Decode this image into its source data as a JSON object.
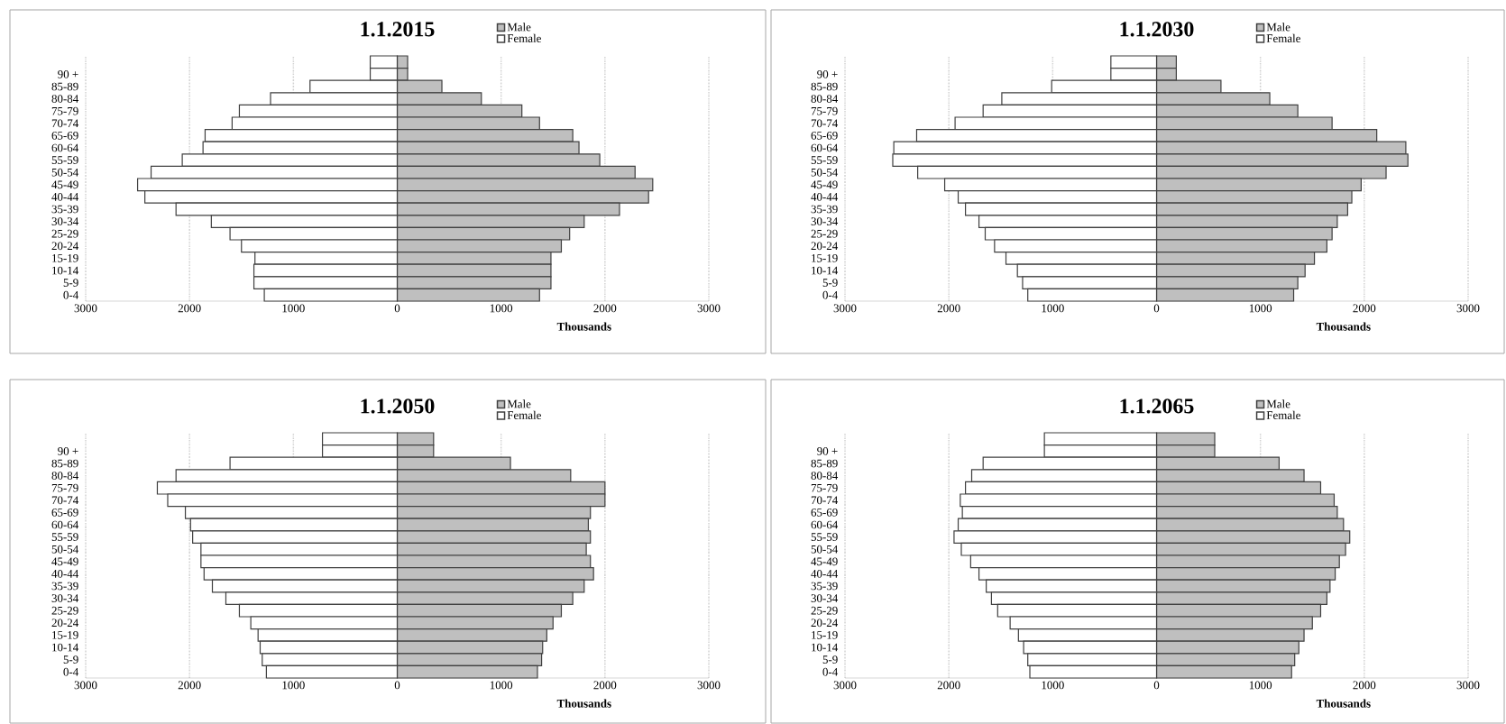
{
  "chart_data": [
    {
      "type": "bar",
      "orientation": "horizontal",
      "stacked": true,
      "title": "1.1.2015",
      "xlabel": "Thousands",
      "grid": "x",
      "legend": "top",
      "categories": [
        null,
        "90 +",
        "85-89",
        "80-84",
        "75-79",
        "70-74",
        "65-69",
        "60-64",
        "55-59",
        "50-54",
        "45-49",
        "40-44",
        "35-39",
        "30-34",
        "25-29",
        "20-24",
        "15-19",
        "10-14",
        "5-9",
        "0-4"
      ],
      "xlim": [
        -3000,
        3000
      ],
      "xticks": [
        {
          "value": -3000,
          "label": "3000"
        },
        {
          "value": -2000,
          "label": "2000"
        },
        {
          "value": -1000,
          "label": "1000"
        },
        0,
        1000,
        2000,
        3000
      ],
      "series": [
        {
          "name": "Male",
          "color": "#bfbfbf",
          "values": [
            100,
            100,
            430,
            810,
            1200,
            1370,
            1690,
            1750,
            1950,
            2290,
            2460,
            2420,
            2140,
            1800,
            1660,
            1580,
            1480,
            1480,
            1480,
            1370
          ]
        },
        {
          "name": "Female",
          "color": "#ffffff",
          "values": [
            -260,
            -260,
            -840,
            -1220,
            -1520,
            -1590,
            -1850,
            -1870,
            -2070,
            -2370,
            -2500,
            -2430,
            -2130,
            -1790,
            -1610,
            -1500,
            -1370,
            -1380,
            -1380,
            -1280
          ]
        }
      ]
    },
    {
      "type": "bar",
      "orientation": "horizontal",
      "stacked": true,
      "title": "1.1.2030",
      "xlabel": "Thousands",
      "grid": "x",
      "legend": "top",
      "categories": [
        null,
        "90 +",
        "85-89",
        "80-84",
        "75-79",
        "70-74",
        "65-69",
        "60-64",
        "55-59",
        "50-54",
        "45-49",
        "40-44",
        "35-39",
        "30-34",
        "25-29",
        "20-24",
        "15-19",
        "10-14",
        "5-9",
        "0-4"
      ],
      "xlim": [
        -3000,
        3000
      ],
      "xticks": [
        {
          "value": -3000,
          "label": "3000"
        },
        {
          "value": -2000,
          "label": "2000"
        },
        {
          "value": -1000,
          "label": "1000"
        },
        0,
        1000,
        2000,
        3000
      ],
      "series": [
        {
          "name": "Male",
          "color": "#bfbfbf",
          "values": [
            190,
            190,
            620,
            1090,
            1360,
            1690,
            2120,
            2400,
            2420,
            2210,
            1970,
            1880,
            1840,
            1740,
            1690,
            1640,
            1520,
            1430,
            1360,
            1320
          ]
        },
        {
          "name": "Female",
          "color": "#ffffff",
          "values": [
            -440,
            -440,
            -1010,
            -1490,
            -1670,
            -1940,
            -2310,
            -2530,
            -2540,
            -2300,
            -2040,
            -1910,
            -1840,
            -1710,
            -1650,
            -1560,
            -1450,
            -1340,
            -1290,
            -1240
          ]
        }
      ]
    },
    {
      "type": "bar",
      "orientation": "horizontal",
      "stacked": true,
      "title": "1.1.2050",
      "xlabel": "Thousands",
      "grid": "x",
      "legend": "top",
      "categories": [
        null,
        "90 +",
        "85-89",
        "80-84",
        "75-79",
        "70-74",
        "65-69",
        "60-64",
        "55-59",
        "50-54",
        "45-49",
        "40-44",
        "35-39",
        "30-34",
        "25-29",
        "20-24",
        "15-19",
        "10-14",
        "5-9",
        "0-4"
      ],
      "xlim": [
        -3000,
        3000
      ],
      "xticks": [
        {
          "value": -3000,
          "label": "3000"
        },
        {
          "value": -2000,
          "label": "2000"
        },
        {
          "value": -1000,
          "label": "1000"
        },
        0,
        1000,
        2000,
        3000
      ],
      "series": [
        {
          "name": "Male",
          "color": "#bfbfbf",
          "values": [
            350,
            350,
            1090,
            1670,
            2000,
            2000,
            1860,
            1840,
            1860,
            1820,
            1860,
            1890,
            1800,
            1690,
            1580,
            1500,
            1440,
            1400,
            1390,
            1350
          ]
        },
        {
          "name": "Female",
          "color": "#ffffff",
          "values": [
            -720,
            -720,
            -1610,
            -2130,
            -2310,
            -2210,
            -2040,
            -1990,
            -1970,
            -1890,
            -1890,
            -1860,
            -1780,
            -1650,
            -1520,
            -1410,
            -1340,
            -1320,
            -1300,
            -1260
          ]
        }
      ]
    },
    {
      "type": "bar",
      "orientation": "horizontal",
      "stacked": true,
      "title": "1.1.2065",
      "xlabel": "Thousands",
      "grid": "x",
      "legend": "top",
      "categories": [
        null,
        "90 +",
        "85-89",
        "80-84",
        "75-79",
        "70-74",
        "65-69",
        "60-64",
        "55-59",
        "50-54",
        "45-49",
        "40-44",
        "35-39",
        "30-34",
        "25-29",
        "20-24",
        "15-19",
        "10-14",
        "5-9",
        "0-4"
      ],
      "xlim": [
        -3000,
        3000
      ],
      "xticks": [
        {
          "value": -3000,
          "label": "3000"
        },
        {
          "value": -2000,
          "label": "2000"
        },
        {
          "value": -1000,
          "label": "1000"
        },
        0,
        1000,
        2000,
        3000
      ],
      "series": [
        {
          "name": "Male",
          "color": "#bfbfbf",
          "values": [
            560,
            560,
            1180,
            1420,
            1580,
            1710,
            1740,
            1800,
            1860,
            1820,
            1760,
            1720,
            1670,
            1640,
            1580,
            1500,
            1420,
            1370,
            1330,
            1300
          ]
        },
        {
          "name": "Female",
          "color": "#ffffff",
          "values": [
            -1080,
            -1080,
            -1670,
            -1780,
            -1840,
            -1890,
            -1870,
            -1910,
            -1950,
            -1880,
            -1790,
            -1710,
            -1640,
            -1590,
            -1530,
            -1410,
            -1330,
            -1280,
            -1240,
            -1220
          ]
        }
      ]
    }
  ]
}
